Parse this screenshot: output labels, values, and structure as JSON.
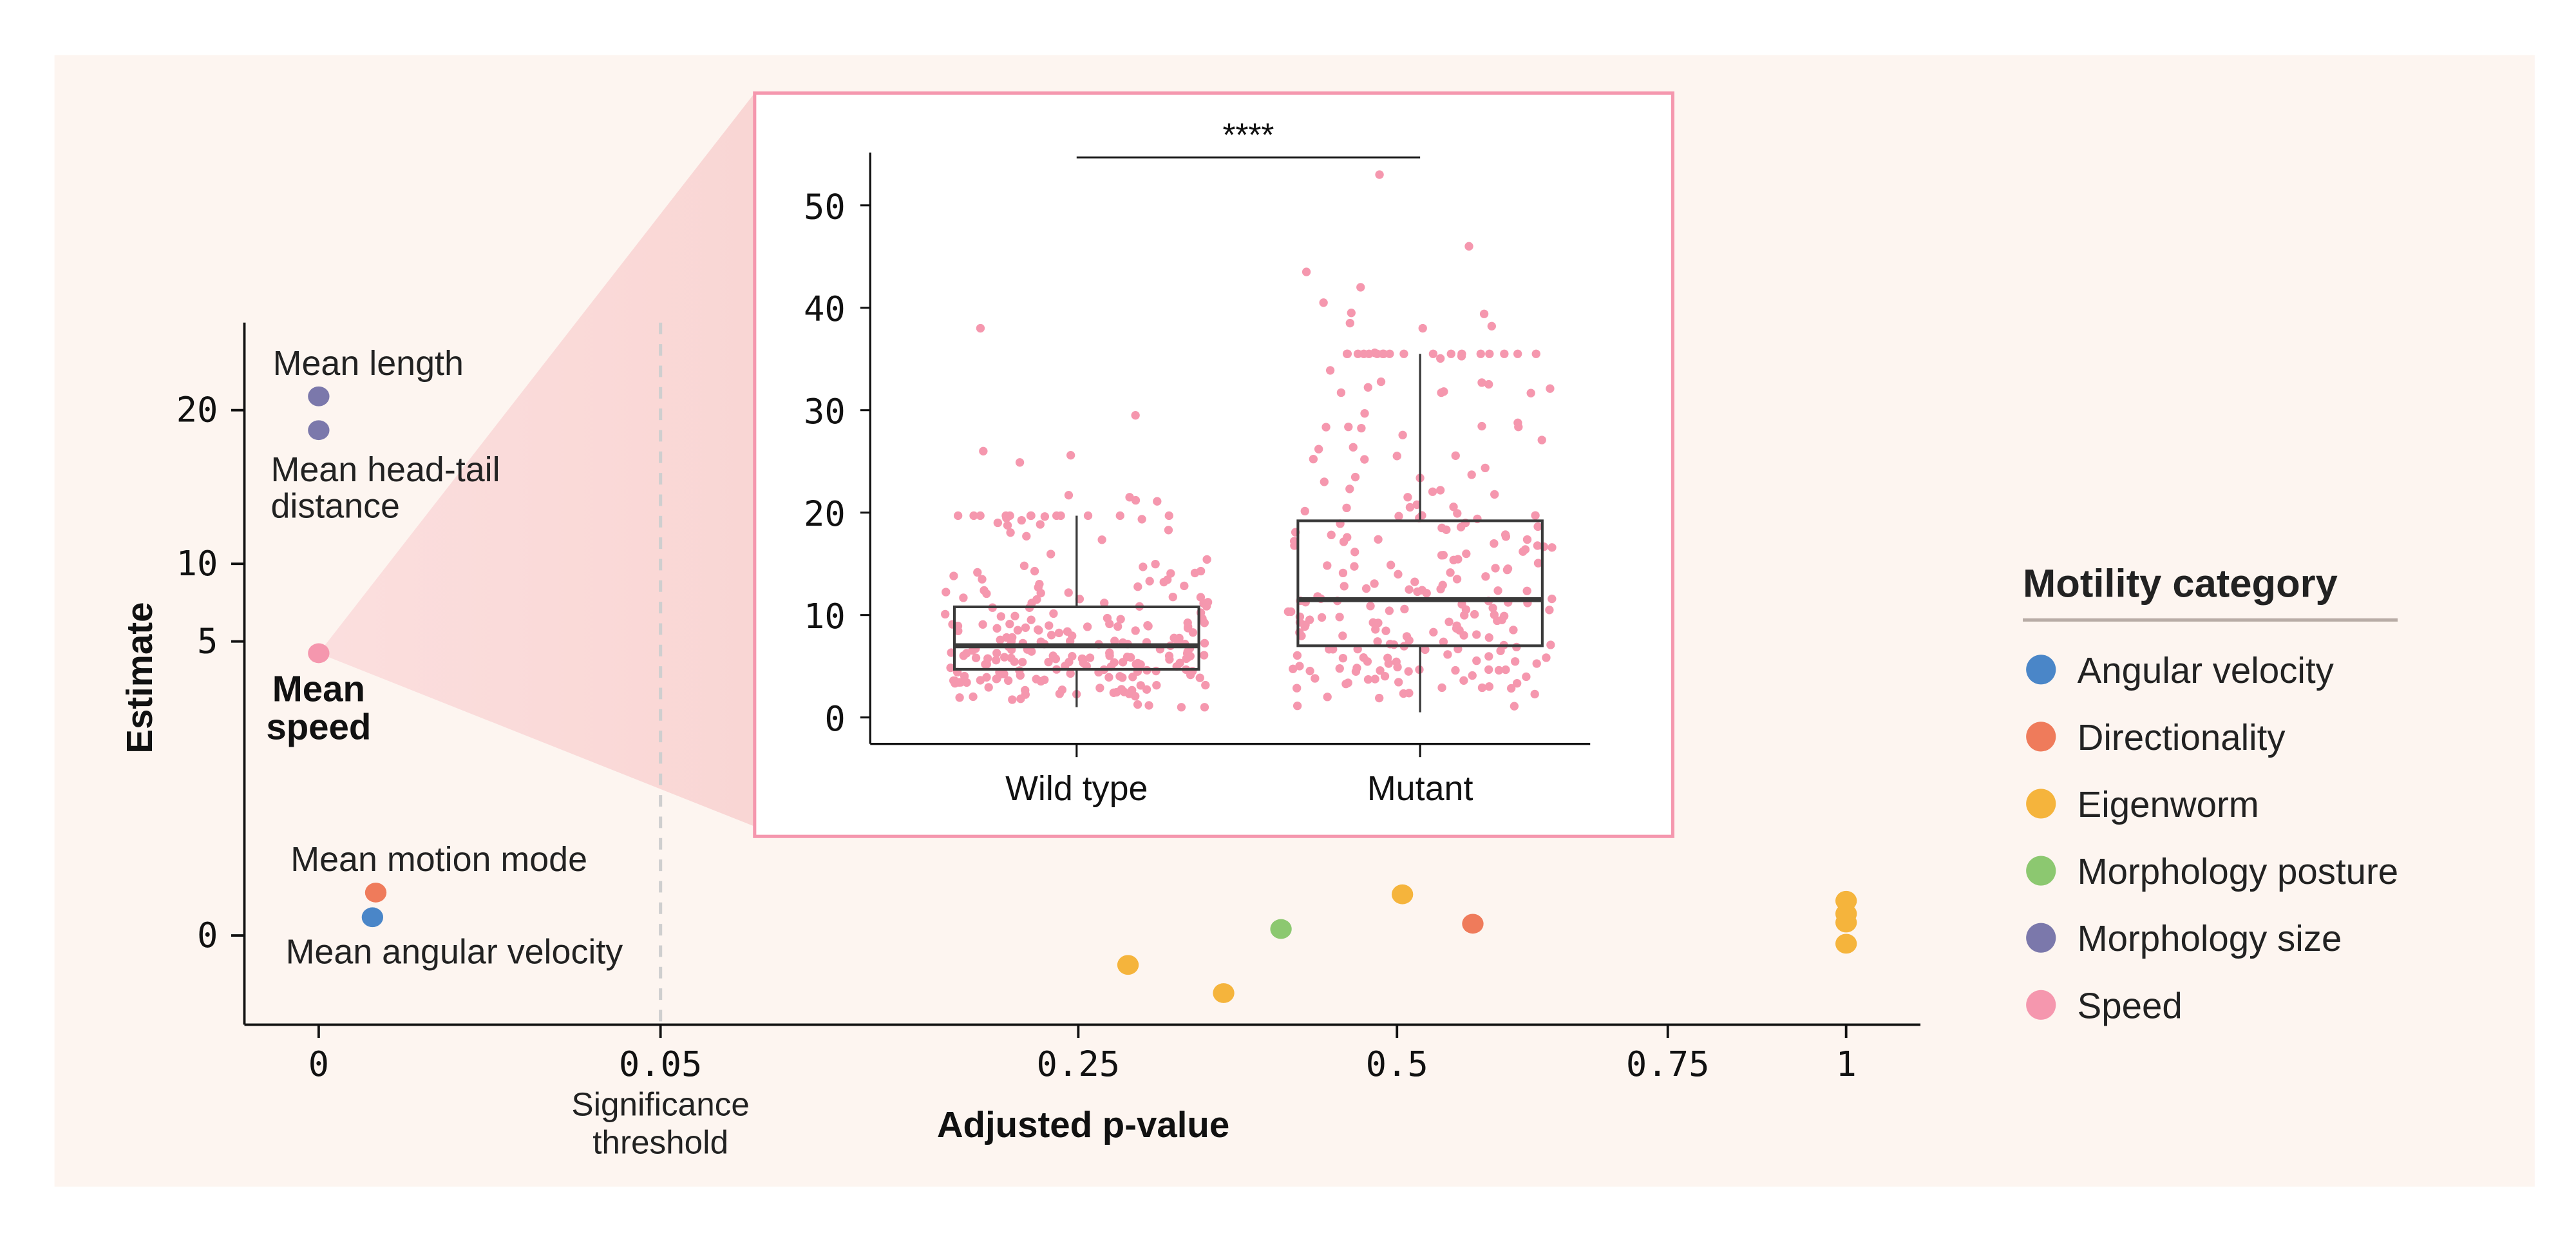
{
  "chart_data": [
    {
      "type": "scatter",
      "xlabel": "Adjusted p-value",
      "ylabel": "Estimate",
      "x_ticks": [
        {
          "value": 0,
          "label": "0"
        },
        {
          "value": 0.05,
          "label": "0.05"
        },
        {
          "value": 0.25,
          "label": "0.25"
        },
        {
          "value": 0.5,
          "label": "0.5"
        },
        {
          "value": 0.75,
          "label": "0.75"
        },
        {
          "value": 1,
          "label": "1"
        }
      ],
      "y_ticks": [
        {
          "value": 0,
          "label": "0"
        },
        {
          "value": 5,
          "label": "5"
        },
        {
          "value": 10,
          "label": "10"
        },
        {
          "value": 20,
          "label": "20"
        }
      ],
      "threshold": {
        "value": 0.05,
        "label_line1": "Significance",
        "label_line2": "threshold",
        "style": "dashed"
      },
      "grid": false,
      "legend": {
        "title": "Motility category",
        "placement": "right",
        "items": [
          {
            "name": "Angular velocity",
            "color": "#4a86c8"
          },
          {
            "name": "Directionality",
            "color": "#ef7b5b"
          },
          {
            "name": "Eigenworm",
            "color": "#f5b43c"
          },
          {
            "name": "Morphology posture",
            "color": "#8cc870"
          },
          {
            "name": "Morphology size",
            "color": "#7b78ab"
          },
          {
            "name": "Speed",
            "color": "#f597ae"
          }
        ]
      },
      "points": [
        {
          "x": 0.0,
          "y": 20.9,
          "category": "Morphology size",
          "label": "Mean length"
        },
        {
          "x": 0.0,
          "y": 18.7,
          "category": "Morphology size",
          "label_line1": "Mean head-tail",
          "label_line2": "distance"
        },
        {
          "x": 0.0,
          "y": 4.8,
          "category": "Speed",
          "label_line1": "Mean",
          "label_line2": "speed",
          "highlight": true
        },
        {
          "x": 0.004,
          "y": 0.73,
          "category": "Directionality",
          "label": "Mean motion mode"
        },
        {
          "x": 0.004,
          "y": 0.31,
          "category": "Angular velocity",
          "label": "Mean angular velocity"
        },
        {
          "x": 0.289,
          "y": -0.5,
          "category": "Eigenworm"
        },
        {
          "x": 0.364,
          "y": -0.98,
          "category": "Eigenworm"
        },
        {
          "x": 0.409,
          "y": 0.11,
          "category": "Morphology posture"
        },
        {
          "x": 0.505,
          "y": 0.7,
          "category": "Eigenworm"
        },
        {
          "x": 0.57,
          "y": 0.2,
          "category": "Directionality"
        },
        {
          "x": 1.0,
          "y": 0.59,
          "category": "Eigenworm"
        },
        {
          "x": 1.0,
          "y": 0.37,
          "category": "Eigenworm"
        },
        {
          "x": 1.0,
          "y": 0.22,
          "category": "Eigenworm"
        },
        {
          "x": 1.0,
          "y": -0.14,
          "category": "Eigenworm"
        }
      ]
    },
    {
      "type": "box",
      "categories": [
        "Wild type",
        "Mutant"
      ],
      "y_ticks": [
        0,
        10,
        20,
        30,
        40,
        50
      ],
      "ylim": [
        -2,
        55
      ],
      "point_color": "#f597ae",
      "significance": {
        "label": "****",
        "from": "Wild type",
        "to": "Mutant"
      },
      "boxes": [
        {
          "name": "Wild type",
          "whisker_low": 1.0,
          "q1": 4.7,
          "median": 7.0,
          "q3": 10.8,
          "whisker_high": 19.7,
          "outliers": [
            38,
            29.5,
            26,
            25.6,
            24.9,
            21.7,
            21.5,
            21.2,
            21.1
          ]
        },
        {
          "name": "Mutant",
          "whisker_low": 0.5,
          "q1": 7.0,
          "median": 11.5,
          "q3": 19.2,
          "whisker_high": 35.5,
          "outliers": [
            53,
            46,
            43.5,
            42,
            40.5,
            39.5,
            39.4,
            38.5,
            38.2,
            38,
            35.6,
            35.5
          ]
        }
      ]
    }
  ]
}
